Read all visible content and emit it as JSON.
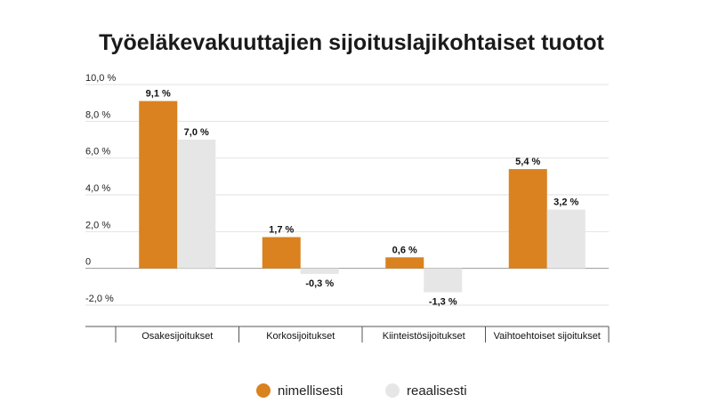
{
  "chart_data": {
    "type": "bar",
    "title": "Työeläkevakuuttajien sijoituslajikohtaiset tuotot",
    "categories": [
      "Osakesijoitukset",
      "Korkosijoitukset",
      "Kiinteistösijoitukset",
      "Vaihtoehtoiset sijoitukset"
    ],
    "series": [
      {
        "name": "nimellisesti",
        "color": "#d9821f",
        "values": [
          9.1,
          1.7,
          0.6,
          5.4
        ],
        "labels": [
          "9,1 %",
          "1,7 %",
          "0,6 %",
          "5,4 %"
        ]
      },
      {
        "name": "reaalisesti",
        "color": "#e6e6e6",
        "values": [
          7.0,
          -0.3,
          -1.3,
          3.2
        ],
        "labels": [
          "7,0 %",
          "-0,3 %",
          "-1,3 %",
          "3,2 %"
        ]
      }
    ],
    "y_ticks": [
      10,
      8,
      6,
      4,
      2,
      0,
      -2
    ],
    "y_tick_labels": [
      "10,0 %",
      "8,0 %",
      "6,0 %",
      "4,0 %",
      "2,0 %",
      "0",
      "-2,0 %"
    ],
    "ylim": [
      -2,
      10
    ],
    "grid": true,
    "legend_position": "bottom"
  }
}
